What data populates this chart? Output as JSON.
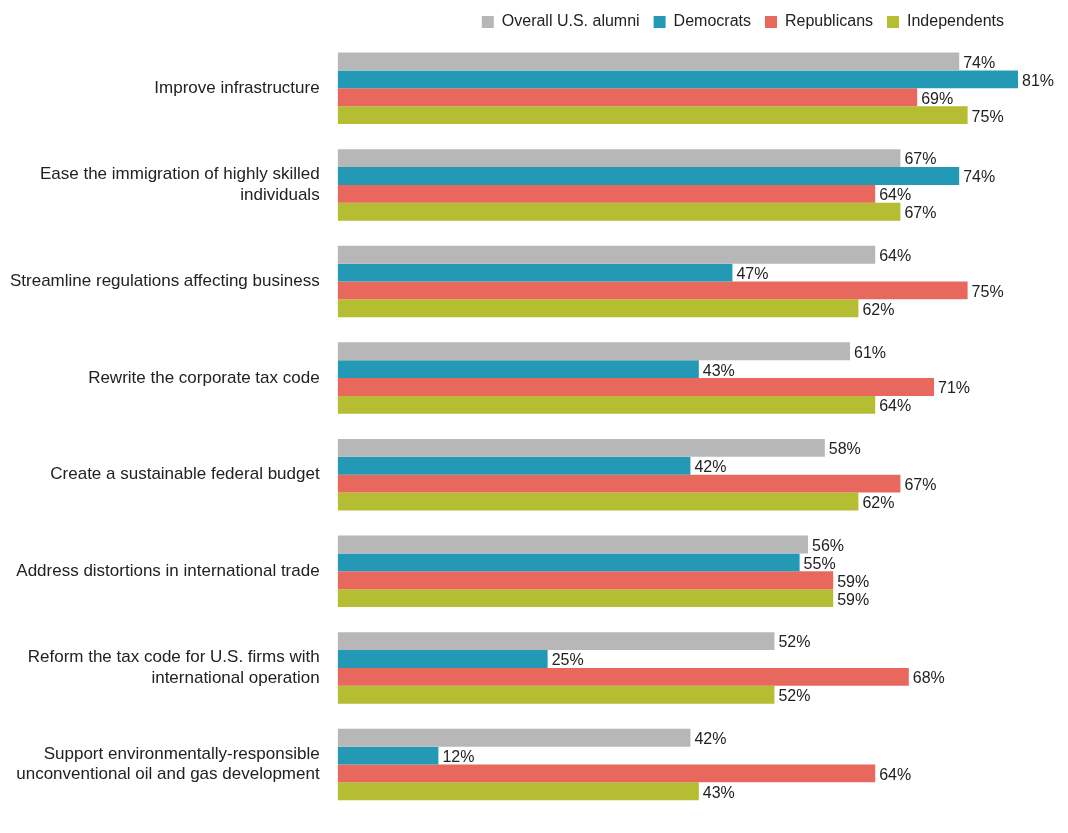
{
  "chart_data": {
    "type": "bar",
    "orientation": "horizontal",
    "legend": "top right",
    "categories": [
      "Improve infrastructure",
      "Ease the immigration of highly skilled individuals",
      "Streamline regulations affecting business",
      "Rewrite the corporate tax code",
      "Create a sustainable federal budget",
      "Address distortions in international trade",
      "Reform the tax code for U.S. firms with international operation",
      "Support environmentally-responsible unconventional oil and gas development"
    ],
    "series": [
      {
        "name": "Overall U.S. alumni",
        "color": "#b7b7b7",
        "values": [
          74,
          67,
          64,
          61,
          58,
          56,
          52,
          42
        ],
        "value_labels": [
          "74%",
          "67%",
          "64%",
          "61%",
          "58%",
          "56%",
          "52%",
          "42%"
        ]
      },
      {
        "name": "Democrats",
        "color": "#2399b5",
        "values": [
          81,
          74,
          47,
          43,
          42,
          55,
          25,
          12
        ],
        "value_labels": [
          "81%",
          "74%",
          "47%",
          "43%",
          "42%",
          "55%",
          "25%",
          "12%"
        ]
      },
      {
        "name": "Republicans",
        "color": "#e8685d",
        "values": [
          69,
          64,
          75,
          71,
          67,
          59,
          68,
          64
        ],
        "value_labels": [
          "69%",
          "64%",
          "75%",
          "71%",
          "67%",
          "59%",
          "68%",
          "64%"
        ]
      },
      {
        "name": "Independents",
        "color": "#b5bd32",
        "values": [
          75,
          67,
          62,
          64,
          62,
          59,
          52,
          43
        ],
        "value_labels": [
          "75%",
          "67%",
          "62%",
          "64%",
          "62%",
          "59%",
          "52%",
          "43%"
        ]
      }
    ]
  }
}
